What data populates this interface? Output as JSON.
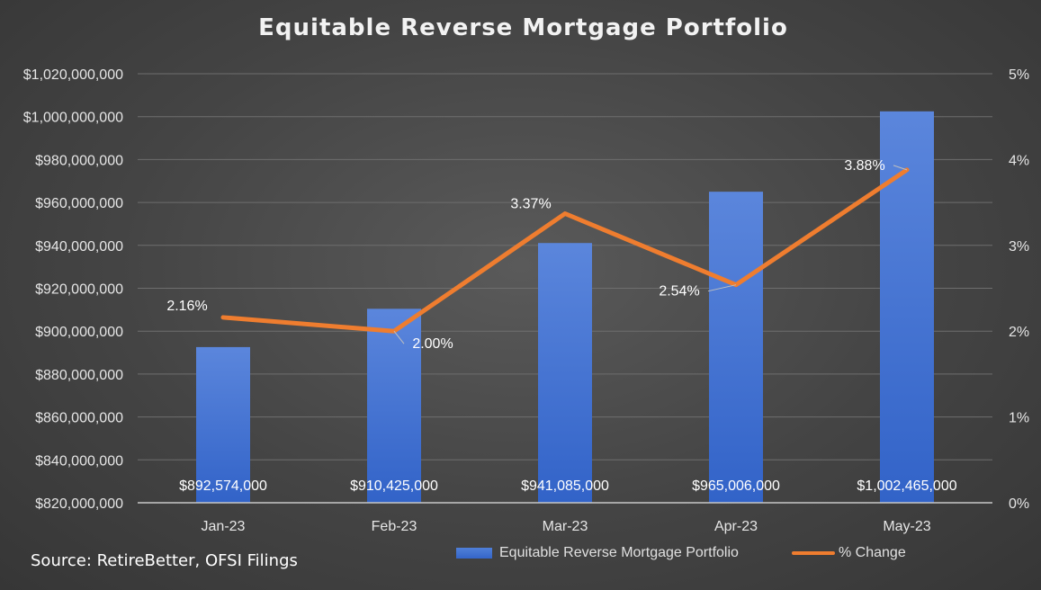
{
  "chart_data": {
    "type": "bar+line",
    "title": "Equitable Reverse Mortgage Portfolio",
    "categories": [
      "Jan-23",
      "Feb-23",
      "Mar-23",
      "Apr-23",
      "May-23"
    ],
    "series": [
      {
        "name": "Equitable Reverse Mortgage Portfolio",
        "type": "bar",
        "axis": "left",
        "values": [
          892574000,
          910425000,
          941085000,
          965006000,
          1002465000
        ],
        "labels": [
          "$892,574,000",
          "$910,425,000",
          "$941,085,000",
          "$965,006,000",
          "$1,002,465,000"
        ],
        "color": "#3d6fd1"
      },
      {
        "name": "% Change",
        "type": "line",
        "axis": "right",
        "values": [
          2.16,
          2.0,
          3.37,
          2.54,
          3.88
        ],
        "labels": [
          "2.16%",
          "2.00%",
          "3.37%",
          "2.54%",
          "3.88%"
        ],
        "color": "#ef7d2f"
      }
    ],
    "y_left": {
      "min": 820000000,
      "max": 1020000000,
      "step": 20000000,
      "ticks": [
        "$820,000,000",
        "$840,000,000",
        "$860,000,000",
        "$880,000,000",
        "$900,000,000",
        "$920,000,000",
        "$940,000,000",
        "$960,000,000",
        "$980,000,000",
        "$1,000,000,000",
        "$1,020,000,000"
      ]
    },
    "y_right": {
      "min": 0,
      "max": 5,
      "step": 1,
      "ticks": [
        "0%",
        "1%",
        "2%",
        "3%",
        "4%",
        "5%"
      ]
    },
    "grid": true,
    "legend_position": "bottom"
  },
  "source": "Source: RetireBetter, OFSI Filings"
}
